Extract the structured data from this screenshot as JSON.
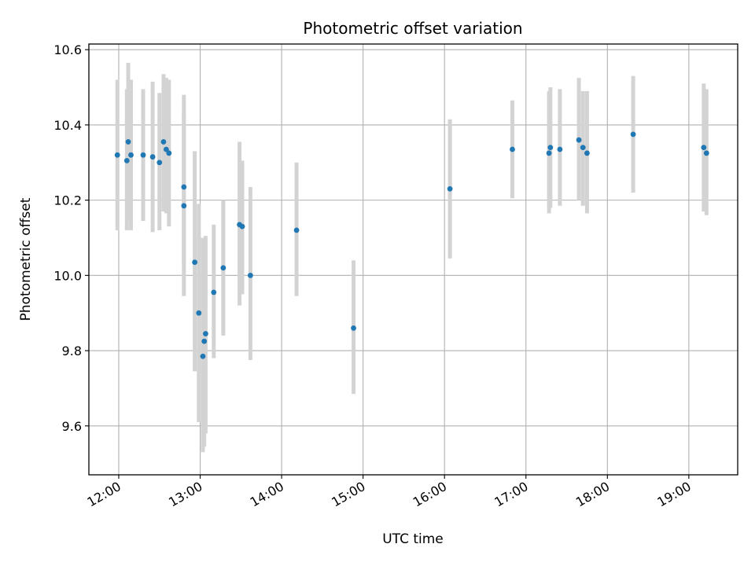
{
  "chart_data": {
    "type": "scatter",
    "title": "Photometric offset variation",
    "xlabel": "UTC time",
    "ylabel": "Photometric offset",
    "x_unit": "time of day (UTC)",
    "xlim": [
      "11:38",
      "19:36"
    ],
    "ylim": [
      9.47,
      10.615
    ],
    "x_ticks": [
      "12:00",
      "13:00",
      "14:00",
      "15:00",
      "16:00",
      "17:00",
      "18:00",
      "19:00"
    ],
    "y_ticks": [
      "9.6",
      "9.8",
      "10.0",
      "10.2",
      "10.4",
      "10.6"
    ],
    "y_tick_values": [
      9.6,
      9.8,
      10.0,
      10.2,
      10.4,
      10.6
    ],
    "grid": true,
    "x_tick_rotation": "30 degrees",
    "colors": {
      "point": "#1f77b4",
      "error_bar": "#d3d3d3",
      "grid": "#b0b0b0"
    },
    "series": [
      {
        "points": [
          {
            "x": "11:59",
            "y": 10.32,
            "err_low": 10.12,
            "err_high": 10.52
          },
          {
            "x": "12:06",
            "y": 10.305,
            "err_low": 10.12,
            "err_high": 10.495
          },
          {
            "x": "12:07",
            "y": 10.355,
            "err_low": 10.15,
            "err_high": 10.565
          },
          {
            "x": "12:09",
            "y": 10.32,
            "err_low": 10.12,
            "err_high": 10.52
          },
          {
            "x": "12:18",
            "y": 10.32,
            "err_low": 10.145,
            "err_high": 10.495
          },
          {
            "x": "12:25",
            "y": 10.315,
            "err_low": 10.115,
            "err_high": 10.515
          },
          {
            "x": "12:30",
            "y": 10.3,
            "err_low": 10.12,
            "err_high": 10.485
          },
          {
            "x": "12:33",
            "y": 10.355,
            "err_low": 10.17,
            "err_high": 10.535
          },
          {
            "x": "12:35",
            "y": 10.335,
            "err_low": 10.165,
            "err_high": 10.525
          },
          {
            "x": "12:37",
            "y": 10.325,
            "err_low": 10.13,
            "err_high": 10.52
          },
          {
            "x": "12:48",
            "y": 10.235,
            "err_low": 10.03,
            "err_high": 10.435
          },
          {
            "x": "12:48",
            "y": 10.185,
            "err_low": 9.945,
            "err_high": 10.48
          },
          {
            "x": "12:56",
            "y": 10.035,
            "err_low": 9.745,
            "err_high": 10.33
          },
          {
            "x": "12:59",
            "y": 9.9,
            "err_low": 9.61,
            "err_high": 10.19
          },
          {
            "x": "13:02",
            "y": 9.785,
            "err_low": 9.53,
            "err_high": 10.1
          },
          {
            "x": "13:03",
            "y": 9.825,
            "err_low": 9.545,
            "err_high": 10.1
          },
          {
            "x": "13:04",
            "y": 9.845,
            "err_low": 9.58,
            "err_high": 10.105
          },
          {
            "x": "13:10",
            "y": 9.955,
            "err_low": 9.78,
            "err_high": 10.135
          },
          {
            "x": "13:17",
            "y": 10.02,
            "err_low": 9.84,
            "err_high": 10.2
          },
          {
            "x": "13:29",
            "y": 10.135,
            "err_low": 9.92,
            "err_high": 10.355
          },
          {
            "x": "13:31",
            "y": 10.13,
            "err_low": 9.95,
            "err_high": 10.305
          },
          {
            "x": "13:37",
            "y": 10.0,
            "err_low": 9.775,
            "err_high": 10.235
          },
          {
            "x": "14:11",
            "y": 10.12,
            "err_low": 9.945,
            "err_high": 10.3
          },
          {
            "x": "14:53",
            "y": 9.86,
            "err_low": 9.685,
            "err_high": 10.04
          },
          {
            "x": "16:04",
            "y": 10.23,
            "err_low": 10.045,
            "err_high": 10.415
          },
          {
            "x": "16:50",
            "y": 10.335,
            "err_low": 10.205,
            "err_high": 10.465
          },
          {
            "x": "17:17",
            "y": 10.325,
            "err_low": 10.165,
            "err_high": 10.49
          },
          {
            "x": "17:18",
            "y": 10.34,
            "err_low": 10.18,
            "err_high": 10.5
          },
          {
            "x": "17:25",
            "y": 10.335,
            "err_low": 10.185,
            "err_high": 10.495
          },
          {
            "x": "17:39",
            "y": 10.36,
            "err_low": 10.2,
            "err_high": 10.525
          },
          {
            "x": "17:42",
            "y": 10.34,
            "err_low": 10.185,
            "err_high": 10.49
          },
          {
            "x": "17:45",
            "y": 10.325,
            "err_low": 10.165,
            "err_high": 10.49
          },
          {
            "x": "18:19",
            "y": 10.375,
            "err_low": 10.22,
            "err_high": 10.53
          },
          {
            "x": "19:11",
            "y": 10.34,
            "err_low": 10.17,
            "err_high": 10.51
          },
          {
            "x": "19:13",
            "y": 10.325,
            "err_low": 10.16,
            "err_high": 10.495
          }
        ]
      }
    ]
  }
}
